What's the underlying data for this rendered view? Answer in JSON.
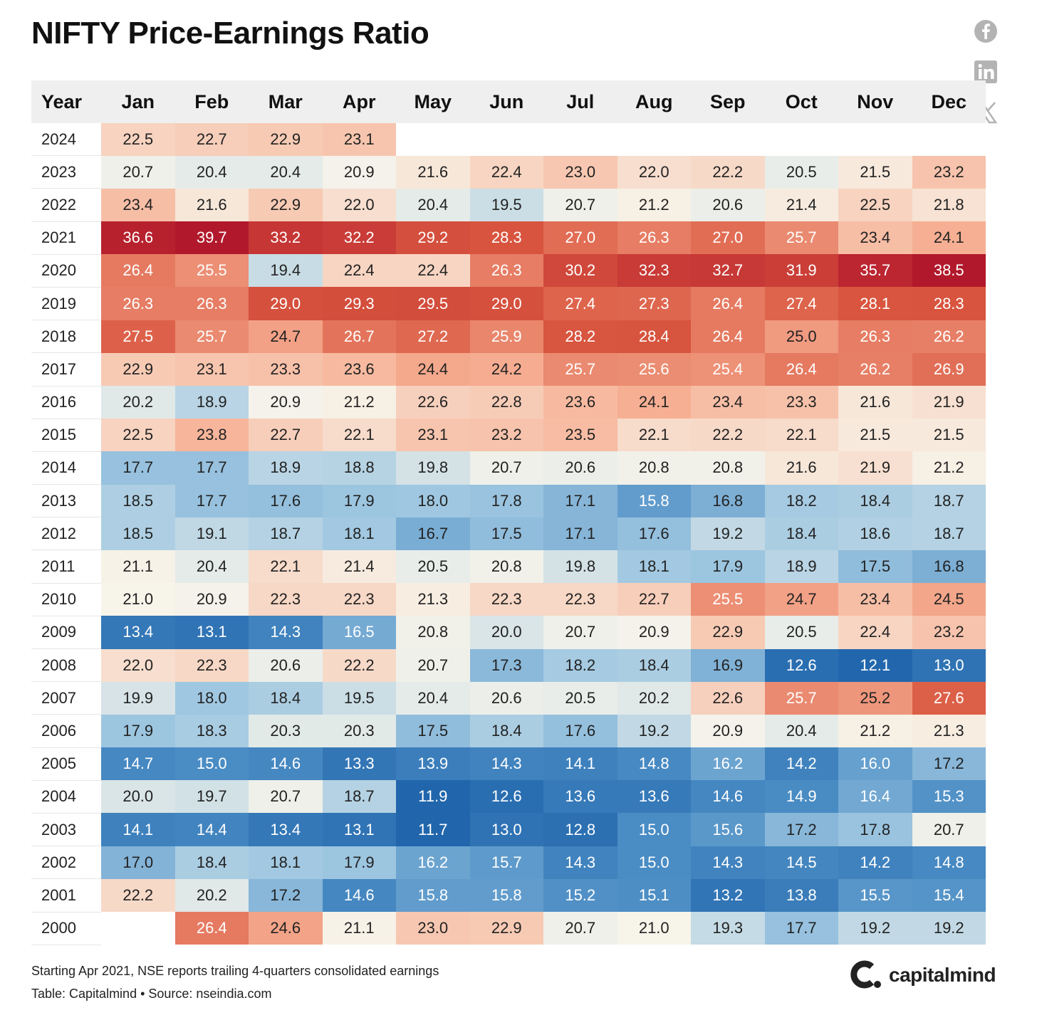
{
  "title": "NIFTY Price-Earnings Ratio",
  "social": [
    "facebook-icon",
    "linkedin-icon",
    "x-icon"
  ],
  "footer": {
    "note": "Starting Apr 2021, NSE reports trailing 4-quarters consolidated earnings",
    "source": "Table: Capitalmind • Source: nseindia.com"
  },
  "logo": {
    "text": "capitalmind"
  },
  "chart_data": {
    "type": "heatmap",
    "title": "NIFTY Price-Earnings Ratio",
    "row_header": "Year",
    "columns": [
      "Jan",
      "Feb",
      "Mar",
      "Apr",
      "May",
      "Jun",
      "Jul",
      "Aug",
      "Sep",
      "Oct",
      "Nov",
      "Dec"
    ],
    "color_scale": {
      "low": "#2166ac",
      "mid": "#f7f4ea",
      "high": "#b2182b",
      "domain": [
        12,
        21,
        38
      ]
    },
    "rows": [
      {
        "year": "2024",
        "values": [
          22.5,
          22.7,
          22.9,
          23.1,
          null,
          null,
          null,
          null,
          null,
          null,
          null,
          null
        ]
      },
      {
        "year": "2023",
        "values": [
          20.7,
          20.4,
          20.4,
          20.9,
          21.6,
          22.4,
          23.0,
          22.0,
          22.2,
          20.5,
          21.5,
          23.2
        ]
      },
      {
        "year": "2022",
        "values": [
          23.4,
          21.6,
          22.9,
          22.0,
          20.4,
          19.5,
          20.7,
          21.2,
          20.6,
          21.4,
          22.5,
          21.8
        ]
      },
      {
        "year": "2021",
        "values": [
          36.6,
          39.7,
          33.2,
          32.2,
          29.2,
          28.3,
          27.0,
          26.3,
          27.0,
          25.7,
          23.4,
          24.1
        ]
      },
      {
        "year": "2020",
        "values": [
          26.4,
          25.5,
          19.4,
          22.4,
          22.4,
          26.3,
          30.2,
          32.3,
          32.7,
          31.9,
          35.7,
          38.5
        ]
      },
      {
        "year": "2019",
        "values": [
          26.3,
          26.3,
          29.0,
          29.3,
          29.5,
          29.0,
          27.4,
          27.3,
          26.4,
          27.4,
          28.1,
          28.3
        ]
      },
      {
        "year": "2018",
        "values": [
          27.5,
          25.7,
          24.7,
          26.7,
          27.2,
          25.9,
          28.2,
          28.4,
          26.4,
          25.0,
          26.3,
          26.2
        ]
      },
      {
        "year": "2017",
        "values": [
          22.9,
          23.1,
          23.3,
          23.6,
          24.4,
          24.2,
          25.7,
          25.6,
          25.4,
          26.4,
          26.2,
          26.9
        ]
      },
      {
        "year": "2016",
        "values": [
          20.2,
          18.9,
          20.9,
          21.2,
          22.6,
          22.8,
          23.6,
          24.1,
          23.4,
          23.3,
          21.6,
          21.9
        ]
      },
      {
        "year": "2015",
        "values": [
          22.5,
          23.8,
          22.7,
          22.1,
          23.1,
          23.2,
          23.5,
          22.1,
          22.2,
          22.1,
          21.5,
          21.5
        ]
      },
      {
        "year": "2014",
        "values": [
          17.7,
          17.7,
          18.9,
          18.8,
          19.8,
          20.7,
          20.6,
          20.8,
          20.8,
          21.6,
          21.9,
          21.2
        ]
      },
      {
        "year": "2013",
        "values": [
          18.5,
          17.7,
          17.6,
          17.9,
          18.0,
          17.8,
          17.1,
          15.8,
          16.8,
          18.2,
          18.4,
          18.7
        ]
      },
      {
        "year": "2012",
        "values": [
          18.5,
          19.1,
          18.7,
          18.1,
          16.7,
          17.5,
          17.1,
          17.6,
          19.2,
          18.4,
          18.6,
          18.7
        ]
      },
      {
        "year": "2011",
        "values": [
          21.1,
          20.4,
          22.1,
          21.4,
          20.5,
          20.8,
          19.8,
          18.1,
          17.9,
          18.9,
          17.5,
          16.8
        ]
      },
      {
        "year": "2010",
        "values": [
          21.0,
          20.9,
          22.3,
          22.3,
          21.3,
          22.3,
          22.3,
          22.7,
          25.5,
          24.7,
          23.4,
          24.5
        ]
      },
      {
        "year": "2009",
        "values": [
          13.4,
          13.1,
          14.3,
          16.5,
          20.8,
          20.0,
          20.7,
          20.9,
          22.9,
          20.5,
          22.4,
          23.2
        ]
      },
      {
        "year": "2008",
        "values": [
          22.0,
          22.3,
          20.6,
          22.2,
          20.7,
          17.3,
          18.2,
          18.4,
          16.9,
          12.6,
          12.1,
          13.0
        ]
      },
      {
        "year": "2007",
        "values": [
          19.9,
          18.0,
          18.4,
          19.5,
          20.4,
          20.6,
          20.5,
          20.2,
          22.6,
          25.7,
          25.2,
          27.6
        ]
      },
      {
        "year": "2006",
        "values": [
          17.9,
          18.3,
          20.3,
          20.3,
          17.5,
          18.4,
          17.6,
          19.2,
          20.9,
          20.4,
          21.2,
          21.3
        ]
      },
      {
        "year": "2005",
        "values": [
          14.7,
          15.0,
          14.6,
          13.3,
          13.9,
          14.3,
          14.1,
          14.8,
          16.2,
          14.2,
          16.0,
          17.2
        ]
      },
      {
        "year": "2004",
        "values": [
          20.0,
          19.7,
          20.7,
          18.7,
          11.9,
          12.6,
          13.6,
          13.6,
          14.6,
          14.9,
          16.4,
          15.3
        ]
      },
      {
        "year": "2003",
        "values": [
          14.1,
          14.4,
          13.4,
          13.1,
          11.7,
          13.0,
          12.8,
          15.0,
          15.6,
          17.2,
          17.8,
          20.7
        ]
      },
      {
        "year": "2002",
        "values": [
          17.0,
          18.4,
          18.1,
          17.9,
          16.2,
          15.7,
          14.3,
          15.0,
          14.3,
          14.5,
          14.2,
          14.8
        ]
      },
      {
        "year": "2001",
        "values": [
          22.2,
          20.2,
          17.2,
          14.6,
          15.8,
          15.8,
          15.2,
          15.1,
          13.2,
          13.8,
          15.5,
          15.4
        ]
      },
      {
        "year": "2000",
        "values": [
          null,
          26.4,
          24.6,
          21.1,
          23.0,
          22.9,
          20.7,
          21.0,
          19.3,
          17.7,
          19.2,
          19.2
        ]
      }
    ]
  }
}
